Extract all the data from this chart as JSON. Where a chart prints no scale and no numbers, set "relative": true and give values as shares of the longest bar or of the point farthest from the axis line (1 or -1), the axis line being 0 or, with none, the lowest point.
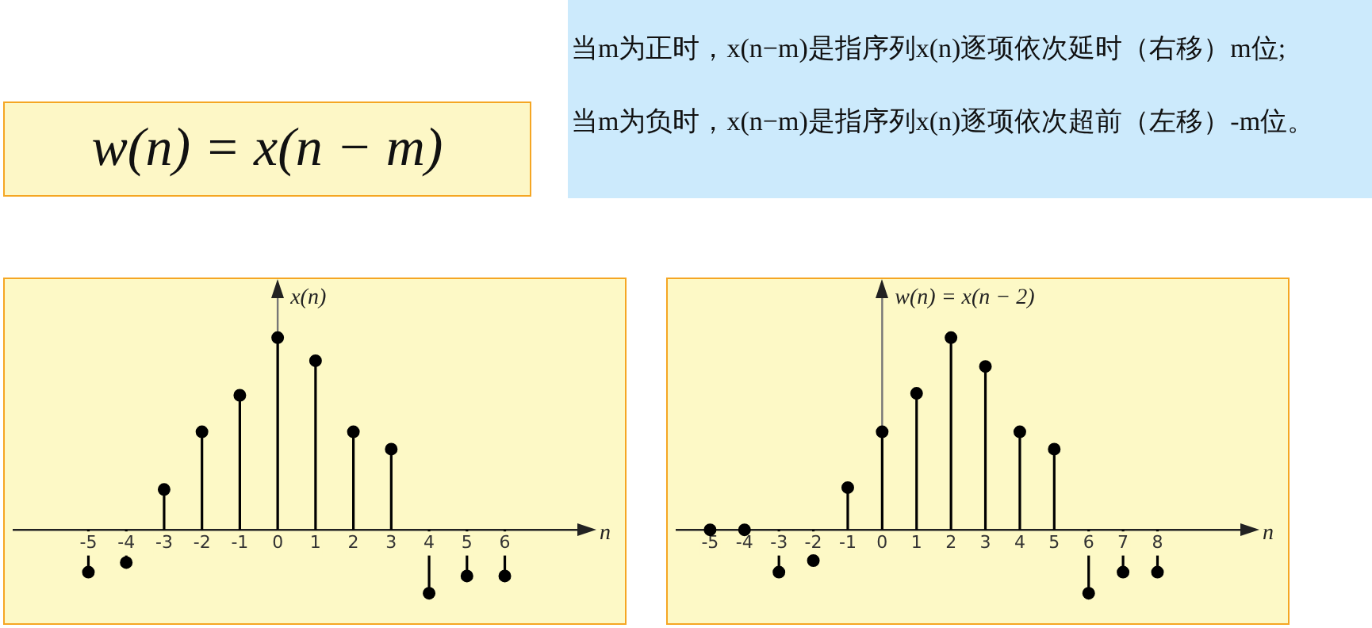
{
  "chart_data": [
    {
      "type": "other",
      "title": "w(n) = x(n − m)"
    },
    {
      "type": "other",
      "annotations": [
        "当m为正时，x(n−m)是指序列x(n)逐项依次延时（右移）m位;",
        "当m为负时，x(n−m)是指序列x(n)逐项依次超前（左移）-m位。"
      ]
    },
    {
      "type": "lollipop",
      "relative": true,
      "ylabel": "x(n)",
      "xlabel": "n",
      "x": [
        -5,
        -4,
        -3,
        -2,
        -1,
        0,
        1,
        2,
        3,
        4,
        5,
        6
      ],
      "xlim": [
        -7,
        8
      ],
      "xticks": [
        -5,
        -4,
        -3,
        -2,
        -1,
        0,
        1,
        2,
        3,
        4,
        5,
        6
      ],
      "marker": "circle",
      "grid": false,
      "legend": false,
      "series": [
        {
          "color": "#000000",
          "values": [
            -0.22,
            -0.17,
            0.21,
            0.51,
            0.7,
            1,
            0.88,
            0.51,
            0.42,
            -0.33,
            -0.24,
            -0.24
          ]
        }
      ]
    },
    {
      "type": "lollipop",
      "relative": true,
      "ylabel": "w(n) = x(n − 2)",
      "xlabel": "n",
      "x": [
        -5,
        -4,
        -3,
        -2,
        -1,
        0,
        1,
        2,
        3,
        4,
        5,
        6,
        7,
        8
      ],
      "xlim": [
        -6,
        10.5
      ],
      "xticks": [
        -5,
        -4,
        -3,
        -2,
        -1,
        0,
        1,
        2,
        3,
        4,
        5,
        6,
        7,
        8
      ],
      "marker": "circle",
      "grid": false,
      "legend": false,
      "series": [
        {
          "color": "#000000",
          "values": [
            0,
            0,
            -0.22,
            -0.16,
            0.22,
            0.51,
            0.71,
            1,
            0.85,
            0.51,
            0.42,
            -0.33,
            -0.22,
            -0.22
          ]
        }
      ]
    }
  ]
}
